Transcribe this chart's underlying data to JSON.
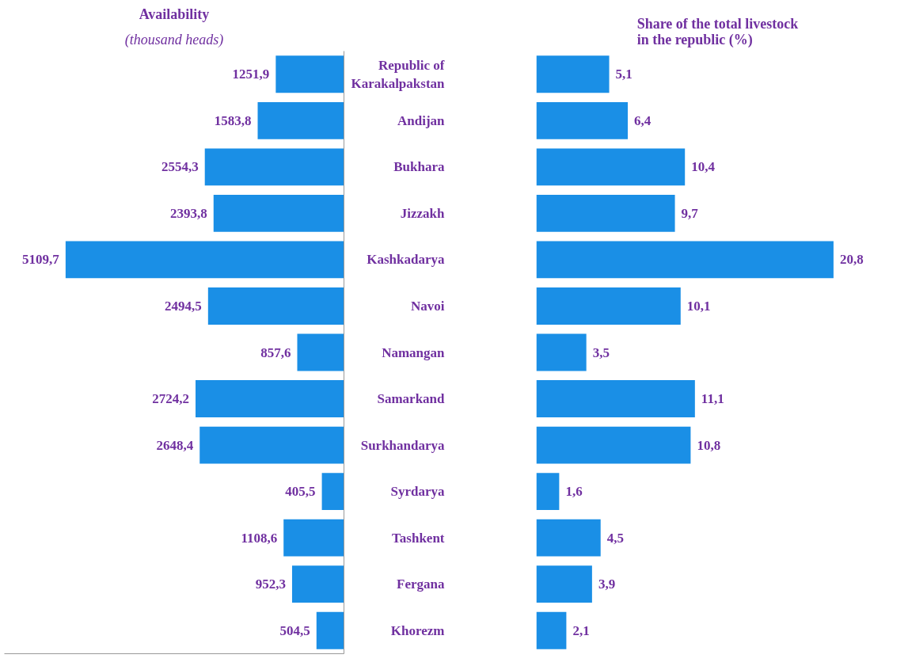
{
  "chart_data": [
    {
      "type": "bar",
      "orientation": "horizontal",
      "title": "Availability",
      "subtitle": "(thousand heads)",
      "categories": [
        "Republic of Karakalpakstan",
        "Andijan",
        "Bukhara",
        "Jizzakh",
        "Kashkadarya",
        "Navoi",
        "Namangan",
        "Samarkand",
        "Surkhandarya",
        "Syrdarya",
        "Tashkent",
        "Fergana",
        "Khorezm"
      ],
      "values": [
        1251.9,
        1583.8,
        2554.3,
        2393.8,
        5109.7,
        2494.5,
        857.6,
        2724.2,
        2648.4,
        405.5,
        1108.6,
        952.3,
        504.5
      ],
      "value_labels": [
        "1251,9",
        "1583,8",
        "2554,3",
        "2393,8",
        "5109,7",
        "2494,5",
        "857,6",
        "2724,2",
        "2648,4",
        "405,5",
        "1108,6",
        "952,3",
        "504,5"
      ],
      "color": "#1a8fe6",
      "tick_labels": false
    },
    {
      "type": "bar",
      "orientation": "horizontal",
      "title": "Share of the total livestock in the republic (%)",
      "categories": [
        "Republic of Karakalpakstan",
        "Andijan",
        "Bukhara",
        "Jizzakh",
        "Kashkadarya",
        "Navoi",
        "Namangan",
        "Samarkand",
        "Surkhandarya",
        "Syrdarya",
        "Tashkent",
        "Fergana",
        "Khorezm"
      ],
      "values": [
        5.1,
        6.4,
        10.4,
        9.7,
        20.8,
        10.1,
        3.5,
        11.1,
        10.8,
        1.6,
        4.5,
        3.9,
        2.1
      ],
      "value_labels": [
        "5,1",
        "6,4",
        "10,4",
        "9,7",
        "20,8",
        "10,1",
        "3,5",
        "11,1",
        "10,8",
        "1,6",
        "4,5",
        "3,9",
        "2,1"
      ],
      "color": "#1a8fe6",
      "tick_labels": "y"
    }
  ]
}
